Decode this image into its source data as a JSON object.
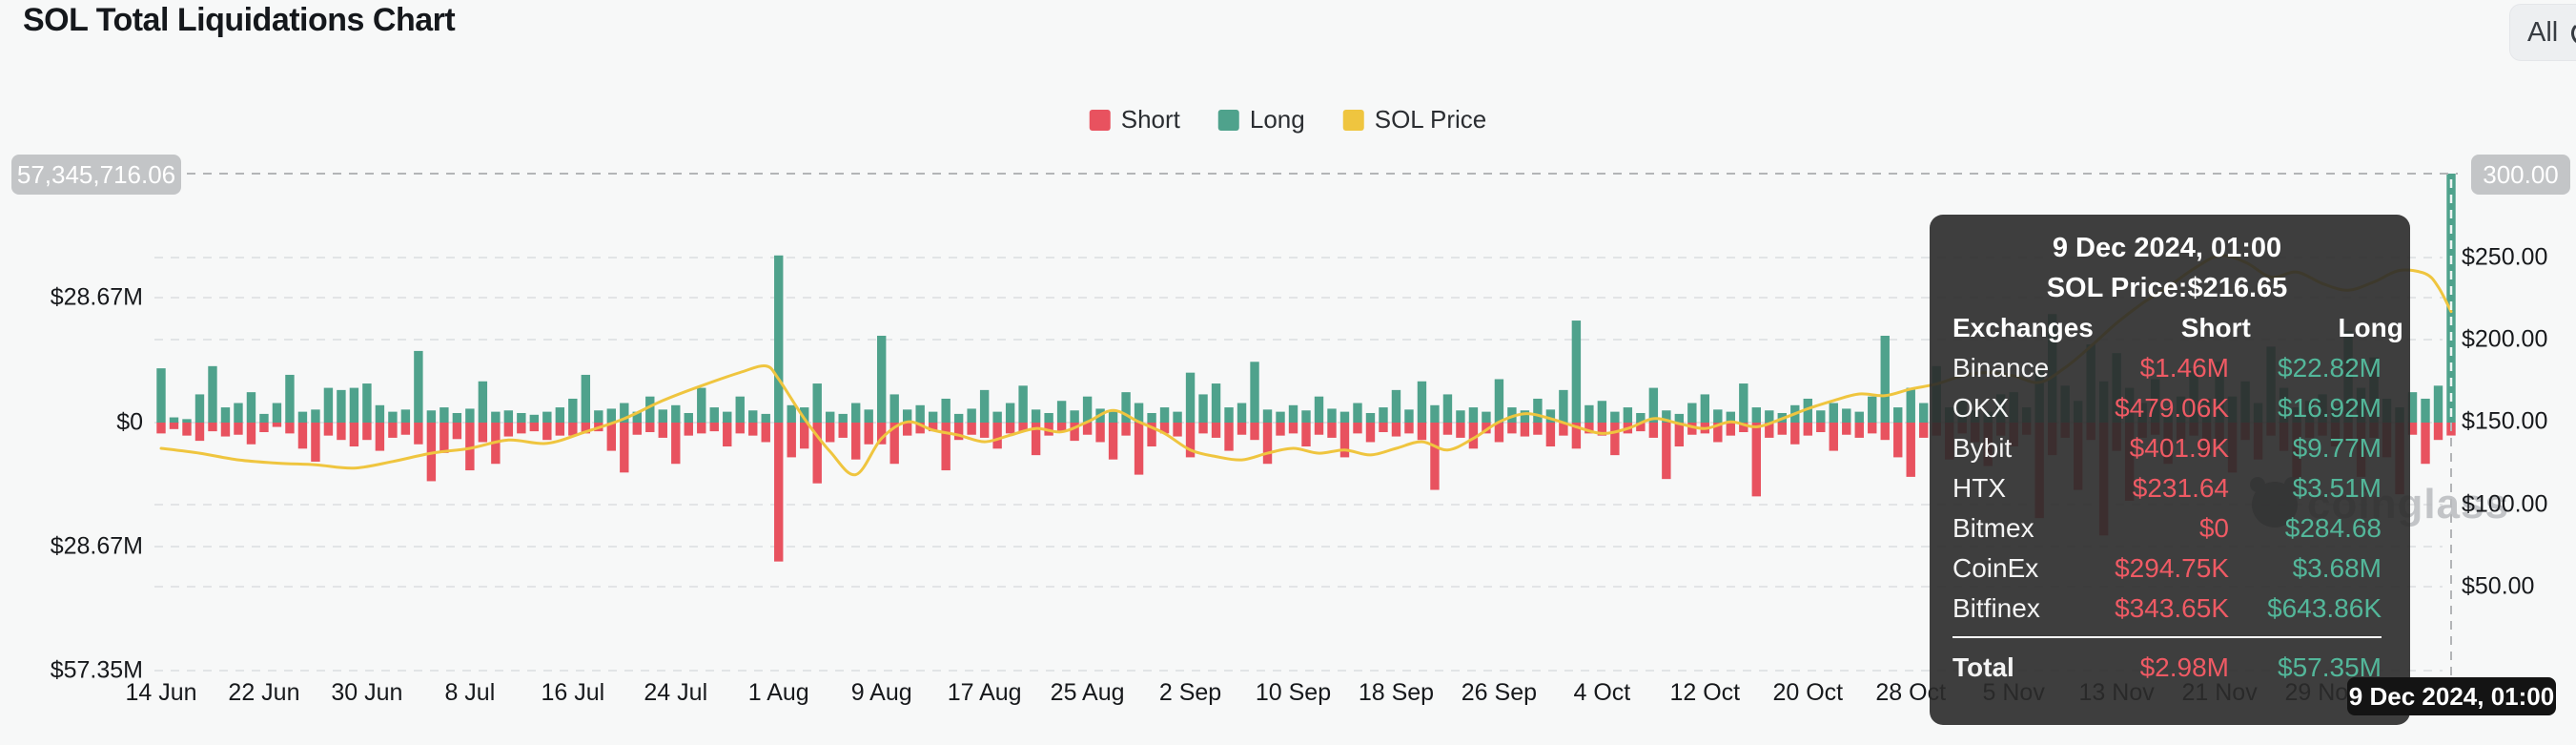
{
  "header": {
    "title": "SOL Total Liquidations Chart",
    "range_button": {
      "label": "All"
    }
  },
  "legend": [
    {
      "label": "Short",
      "color": "#E8525F"
    },
    {
      "label": "Long",
      "color": "#4FA28C"
    },
    {
      "label": "SOL Price",
      "color": "#EFC53F"
    }
  ],
  "left_axis": {
    "hover_badge": "57,345,716.06",
    "ticks": [
      {
        "label": "$28.67M",
        "y": 312
      },
      {
        "label": "$0",
        "y": 443
      },
      {
        "label": "$28.67M",
        "y": 573
      },
      {
        "label": "$57.35M",
        "y": 703
      }
    ]
  },
  "right_axis": {
    "hover_badge": "300.00",
    "ticks": [
      {
        "label": "$250.00",
        "y": 270
      },
      {
        "label": "$200.00",
        "y": 356
      },
      {
        "label": "$150.00",
        "y": 442
      },
      {
        "label": "$100.00",
        "y": 529
      },
      {
        "label": "$50.00",
        "y": 615
      }
    ]
  },
  "x_axis": {
    "labels": [
      "14 Jun",
      "22 Jun",
      "30 Jun",
      "8 Jul",
      "16 Jul",
      "24 Jul",
      "1 Aug",
      "9 Aug",
      "17 Aug",
      "25 Aug",
      "2 Sep",
      "10 Sep",
      "18 Sep",
      "26 Sep",
      "4 Oct",
      "12 Oct",
      "20 Oct",
      "28 Oct",
      "5 Nov",
      "13 Nov",
      "21 Nov",
      "29 Nov"
    ],
    "label_every_days": 8
  },
  "chart_data": {
    "type": "bar",
    "title": "SOL Total Liquidations Chart",
    "start_date": "14 Jun 2024",
    "end_date": "9 Dec 2024",
    "units": "USD millions (bars, diverging: Long up / Short down), USD (price line)",
    "left_axis_range_abs": [
      0,
      57.35
    ],
    "right_axis_range": [
      50,
      300
    ],
    "grid": "dashed horizontal",
    "legend_position": "top-center",
    "series": [
      {
        "name": "Long",
        "type": "bar",
        "direction": "up",
        "color": "#4FA28C",
        "values": [
          12.5,
          1.2,
          0.8,
          6.5,
          13,
          3.5,
          4.5,
          7,
          2,
          4.5,
          11,
          2.5,
          3,
          8,
          7.5,
          8,
          9,
          4,
          2.5,
          3,
          16.5,
          2.8,
          3.5,
          2.2,
          3.2,
          9.5,
          2.5,
          2.8,
          2.2,
          1.8,
          2.5,
          3.5,
          5.5,
          11,
          2.8,
          3.2,
          4.5,
          2.5,
          6,
          3,
          4,
          2.2,
          8,
          3.5,
          2.5,
          6,
          2.8,
          2,
          38.5,
          4,
          3.5,
          9,
          2.5,
          2,
          4.5,
          3,
          20,
          6.5,
          3,
          4,
          2.5,
          5.5,
          2,
          3.2,
          7.5,
          2.5,
          4.5,
          8.5,
          3,
          2.2,
          5,
          2.8,
          6,
          3.2,
          2.5,
          7,
          4.5,
          2.2,
          3.5,
          2.5,
          11.5,
          6.5,
          9,
          3.5,
          4.5,
          14,
          3,
          2.5,
          4,
          2.8,
          6,
          3.2,
          2.5,
          4.5,
          2.2,
          3.5,
          7.5,
          3,
          9.5,
          4,
          6.5,
          2.8,
          3.5,
          2.5,
          10,
          3.5,
          2.8,
          5.5,
          3,
          7.5,
          23.5,
          4,
          5,
          2.5,
          3.5,
          2.2,
          8,
          2.8,
          2,
          4.5,
          6.5,
          3,
          2.5,
          9,
          3.5,
          2.8,
          2.2,
          4,
          5.5,
          2.8,
          4.5,
          3.2,
          2.5,
          6,
          20,
          3.5,
          8,
          4.5,
          13,
          3.5,
          5,
          2.8,
          2.5,
          6.5,
          7,
          3.5,
          12,
          25,
          8.5,
          5,
          18,
          9.5,
          16,
          8,
          4.5,
          10,
          3.5,
          6,
          12.5,
          5.5,
          14,
          6,
          9.5,
          4.5,
          17.5,
          8,
          3.5,
          5,
          6.5,
          4,
          21,
          8,
          15,
          5.5,
          3.5,
          7,
          5.5,
          8.5,
          57.35
        ]
      },
      {
        "name": "Short",
        "type": "bar",
        "direction": "down",
        "color": "#E8525F",
        "values": [
          2.5,
          1.5,
          3,
          4.2,
          2,
          3.2,
          2.8,
          5,
          2.2,
          1,
          2.5,
          6,
          9,
          3,
          4,
          5.5,
          4,
          6.5,
          3.5,
          2.8,
          5,
          13.5,
          7,
          3.8,
          11,
          4.5,
          9.5,
          3.2,
          2.5,
          2,
          4,
          3,
          3,
          2.5,
          2,
          6.5,
          11.5,
          2.8,
          2.2,
          3.5,
          9.5,
          3,
          2.5,
          2,
          5.5,
          2.5,
          3,
          4.5,
          32,
          8,
          6,
          14,
          4.5,
          3.5,
          8.5,
          5,
          5,
          9.5,
          3,
          2.5,
          2,
          11,
          4,
          2.8,
          3.5,
          6,
          2.5,
          2,
          7.5,
          3,
          2.2,
          4.2,
          2.8,
          4.5,
          8.5,
          3,
          12,
          5.5,
          2.5,
          3.2,
          8,
          2.5,
          3.5,
          6.5,
          2.8,
          4,
          9.5,
          3,
          2.5,
          5.5,
          2.8,
          3.5,
          8,
          2.5,
          4.5,
          2.2,
          3.2,
          2.5,
          4,
          15.5,
          2.8,
          3.5,
          6,
          2.5,
          4.5,
          2.5,
          3.2,
          2.8,
          5.5,
          3,
          6,
          2.5,
          3,
          7.5,
          2.5,
          2,
          3.5,
          13,
          5.5,
          2.8,
          2.5,
          4.5,
          3,
          2.2,
          17,
          3.5,
          2.8,
          5,
          3,
          2.2,
          6.5,
          2.8,
          3.5,
          2.5,
          4,
          8,
          12.5,
          3.5,
          3,
          8.5,
          2.5,
          4.5,
          10,
          3,
          5.5,
          2.8,
          22,
          7.5,
          3.5,
          15.5,
          4,
          26,
          6.5,
          18,
          3.5,
          2.8,
          9.5,
          4,
          3,
          7.5,
          5,
          11.5,
          4,
          8.5,
          3,
          6.5,
          14.5,
          3.5,
          3,
          5.5,
          4.5,
          12.5,
          3.5,
          8,
          16.5,
          2.8,
          9.5,
          4,
          2.98
        ]
      },
      {
        "name": "SOL Price",
        "type": "line",
        "color": "#EFC53F",
        "points_day_price": [
          [
            0,
            134
          ],
          [
            3,
            131
          ],
          [
            6,
            127
          ],
          [
            9,
            125
          ],
          [
            12,
            124
          ],
          [
            15,
            122
          ],
          [
            18,
            126
          ],
          [
            21,
            131
          ],
          [
            24,
            134
          ],
          [
            27,
            139
          ],
          [
            30,
            137
          ],
          [
            33,
            144
          ],
          [
            36,
            152
          ],
          [
            39,
            163
          ],
          [
            42,
            172
          ],
          [
            45,
            180
          ],
          [
            47,
            184
          ],
          [
            48,
            176
          ],
          [
            50,
            152
          ],
          [
            52,
            132
          ],
          [
            54,
            118
          ],
          [
            56,
            140
          ],
          [
            58,
            150
          ],
          [
            60,
            145
          ],
          [
            62,
            142
          ],
          [
            64,
            138
          ],
          [
            66,
            142
          ],
          [
            68,
            146
          ],
          [
            70,
            144
          ],
          [
            72,
            150
          ],
          [
            74,
            157
          ],
          [
            76,
            150
          ],
          [
            78,
            143
          ],
          [
            80,
            133
          ],
          [
            82,
            129
          ],
          [
            84,
            127
          ],
          [
            86,
            131
          ],
          [
            88,
            134
          ],
          [
            90,
            131
          ],
          [
            92,
            133
          ],
          [
            94,
            130
          ],
          [
            96,
            134
          ],
          [
            98,
            138
          ],
          [
            100,
            133
          ],
          [
            102,
            140
          ],
          [
            104,
            150
          ],
          [
            106,
            155
          ],
          [
            108,
            152
          ],
          [
            110,
            147
          ],
          [
            112,
            143
          ],
          [
            114,
            146
          ],
          [
            116,
            152
          ],
          [
            118,
            149
          ],
          [
            120,
            146
          ],
          [
            122,
            150
          ],
          [
            124,
            147
          ],
          [
            126,
            152
          ],
          [
            128,
            158
          ],
          [
            130,
            163
          ],
          [
            132,
            167
          ],
          [
            134,
            166
          ],
          [
            136,
            170
          ],
          [
            138,
            173
          ],
          [
            140,
            178
          ],
          [
            142,
            180
          ],
          [
            144,
            178
          ],
          [
            146,
            174
          ],
          [
            148,
            183
          ],
          [
            150,
            196
          ],
          [
            152,
            210
          ],
          [
            154,
            222
          ],
          [
            156,
            232
          ],
          [
            158,
            243
          ],
          [
            160,
            251
          ],
          [
            162,
            247
          ],
          [
            164,
            238
          ],
          [
            166,
            241
          ],
          [
            168,
            234
          ],
          [
            170,
            230
          ],
          [
            172,
            235
          ],
          [
            174,
            242
          ],
          [
            176,
            240
          ],
          [
            177,
            232
          ],
          [
            178,
            217
          ]
        ]
      }
    ],
    "hovered_day_index": 178
  },
  "tooltip": {
    "date": "9 Dec 2024, 01:00",
    "price_line": "SOL Price:$216.65",
    "columns": {
      "exchange": "Exchanges",
      "short": "Short",
      "long": "Long"
    },
    "rows": [
      {
        "exchange": "Binance",
        "short": "$1.46M",
        "long": "$22.82M"
      },
      {
        "exchange": "OKX",
        "short": "$479.06K",
        "long": "$16.92M"
      },
      {
        "exchange": "Bybit",
        "short": "$401.9K",
        "long": "$9.77M"
      },
      {
        "exchange": "HTX",
        "short": "$231.64",
        "long": "$3.51M"
      },
      {
        "exchange": "Bitmex",
        "short": "$0",
        "long": "$284.68"
      },
      {
        "exchange": "CoinEx",
        "short": "$294.75K",
        "long": "$3.68M"
      },
      {
        "exchange": "Bitfinex",
        "short": "$343.65K",
        "long": "$643.86K"
      }
    ],
    "total": {
      "exchange": "Total",
      "short": "$2.98M",
      "long": "$57.35M"
    }
  },
  "date_badge": "9 Dec 2024, 01:00",
  "watermark": "coinglass",
  "colors": {
    "short": "#E8525F",
    "long": "#4FA28C",
    "price": "#EFC53F",
    "background": "#F7F8F8",
    "grid": "#E2E4E6",
    "crosshair": "#B3B5B7",
    "axis_badge_bg": "#C3C5C7",
    "date_badge_bg": "#141414",
    "tooltip_short_text": "#EF5A64",
    "tooltip_long_text": "#53B79A"
  }
}
